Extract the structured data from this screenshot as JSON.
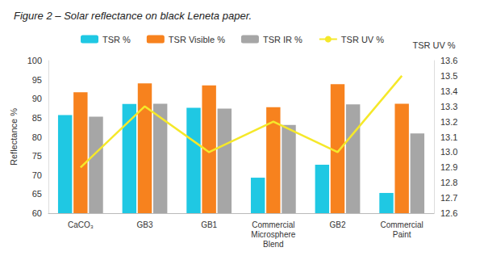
{
  "chart_data": {
    "type": "bar",
    "title": "Figure 2 – Solar reflectance on black Leneta paper.",
    "categories": [
      "CaCO₃",
      "GB3",
      "GB1",
      "Commercial Microsphere Blend",
      "GB2",
      "Commercial Paint"
    ],
    "series": [
      {
        "name": "TSR %",
        "color": "#1fc8e3",
        "values": [
          85.7,
          88.6,
          87.6,
          69.3,
          72.7,
          65.3
        ]
      },
      {
        "name": "TSR Visible %",
        "color": "#f7821e",
        "values": [
          91.7,
          94.0,
          93.5,
          87.8,
          93.8,
          88.7
        ]
      },
      {
        "name": "TSR IR %",
        "color": "#a6a6a6",
        "values": [
          85.3,
          88.7,
          87.4,
          83.1,
          88.5,
          80.9
        ]
      },
      {
        "name": "TSR UV %",
        "color": "#f5e82a",
        "type": "line",
        "axis": "y2",
        "values": [
          12.9,
          13.3,
          13.0,
          13.2,
          13.0,
          13.5
        ]
      }
    ],
    "ylabel": "Reflectance %",
    "y2label": "TSR UV %",
    "ylim": [
      60,
      100
    ],
    "yticks": [
      60,
      65,
      70,
      75,
      80,
      85,
      90,
      95,
      100
    ],
    "y2lim": [
      12.6,
      13.6
    ],
    "y2ticks": [
      12.6,
      12.7,
      12.8,
      12.9,
      {
        "value": 13,
        "label": "13.0"
      },
      13.1,
      13.2,
      13.3,
      13.4,
      13.5,
      13.6
    ],
    "grid": false,
    "legend": "top"
  }
}
